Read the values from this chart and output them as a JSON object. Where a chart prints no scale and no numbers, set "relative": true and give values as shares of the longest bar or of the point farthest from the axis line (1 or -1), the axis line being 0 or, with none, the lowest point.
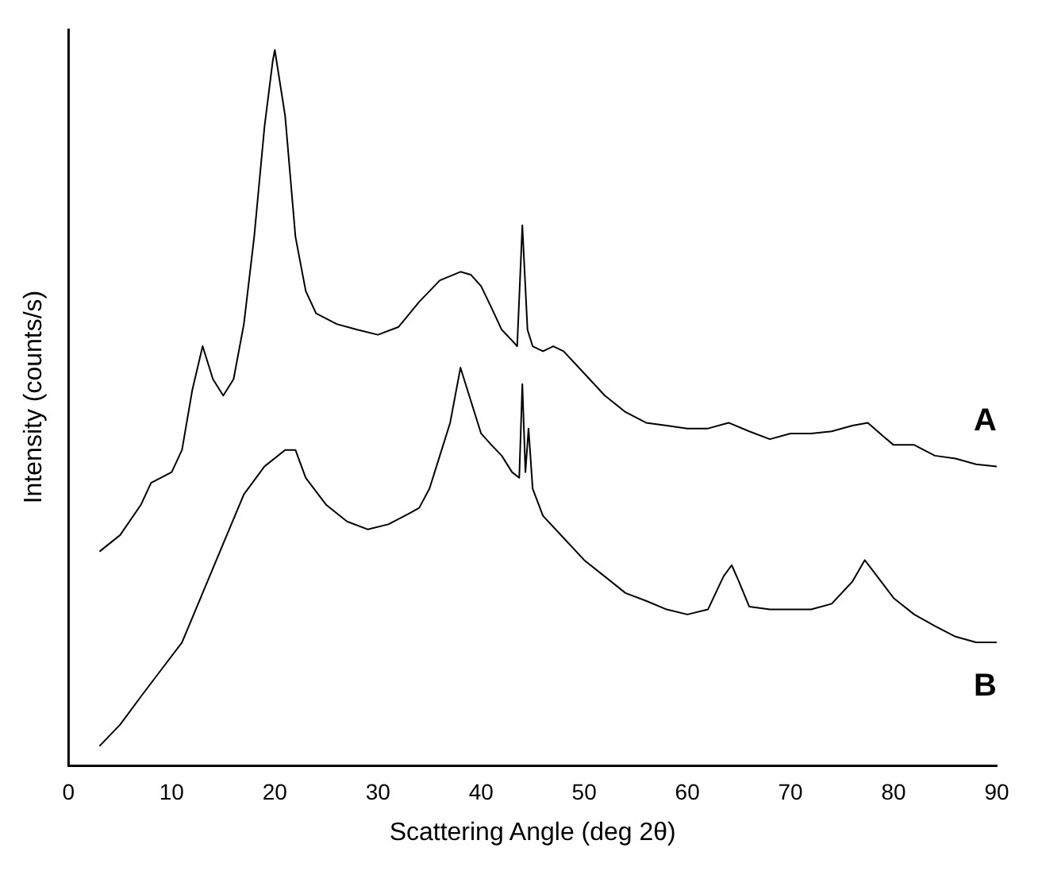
{
  "chart_data": {
    "type": "line",
    "xlabel": "Scattering Angle (deg 2θ)",
    "ylabel": "Intensity (counts/s)",
    "relative": true,
    "xlim": [
      0,
      90
    ],
    "xticks": [
      0,
      10,
      20,
      30,
      40,
      50,
      60,
      70,
      80,
      90
    ],
    "grid": false,
    "legend": false,
    "marker": "none",
    "line_style": "solid",
    "series": [
      {
        "name": "A",
        "color": "#000000",
        "x": [
          3,
          5,
          7,
          8,
          10,
          11,
          12,
          13,
          14,
          15,
          16,
          17,
          18,
          19,
          19.8,
          20,
          21,
          22,
          23,
          24,
          26,
          28,
          30,
          32,
          34,
          36,
          38,
          39,
          40,
          41,
          42,
          43,
          43.5,
          44,
          44.5,
          45,
          46,
          47,
          48,
          50,
          52,
          54,
          56,
          58,
          60,
          62,
          64,
          66,
          68,
          70,
          72,
          74,
          76,
          77.5,
          79,
          80,
          82,
          84,
          86,
          88,
          90
        ],
        "values": [
          0.299,
          0.322,
          0.364,
          0.395,
          0.41,
          0.441,
          0.525,
          0.586,
          0.54,
          0.517,
          0.54,
          0.617,
          0.739,
          0.893,
          0.985,
          1.0,
          0.908,
          0.739,
          0.663,
          0.632,
          0.617,
          0.609,
          0.602,
          0.613,
          0.648,
          0.678,
          0.69,
          0.686,
          0.67,
          0.64,
          0.609,
          0.594,
          0.586,
          0.755,
          0.609,
          0.586,
          0.579,
          0.586,
          0.579,
          0.548,
          0.517,
          0.494,
          0.479,
          0.475,
          0.471,
          0.471,
          0.479,
          0.467,
          0.456,
          0.464,
          0.464,
          0.467,
          0.475,
          0.479,
          0.46,
          0.448,
          0.448,
          0.433,
          0.429,
          0.421,
          0.418
        ]
      },
      {
        "name": "B",
        "color": "#000000",
        "x": [
          3,
          5,
          7,
          9,
          11,
          13,
          15,
          17,
          19,
          21,
          22,
          23,
          25,
          27,
          29,
          31,
          33,
          34,
          35,
          36,
          37,
          38,
          39,
          40,
          41,
          42,
          43,
          43.7,
          44,
          44.3,
          44.6,
          45,
          46,
          48,
          50,
          52,
          54,
          56,
          58,
          60,
          62,
          63.5,
          64.3,
          65,
          66,
          68,
          70,
          72,
          74,
          76,
          77.2,
          78,
          80,
          82,
          84,
          86,
          88,
          90
        ],
        "values": [
          0.027,
          0.057,
          0.096,
          0.134,
          0.172,
          0.241,
          0.31,
          0.379,
          0.418,
          0.441,
          0.441,
          0.402,
          0.364,
          0.341,
          0.33,
          0.337,
          0.352,
          0.36,
          0.387,
          0.433,
          0.479,
          0.556,
          0.51,
          0.464,
          0.448,
          0.433,
          0.41,
          0.402,
          0.533,
          0.41,
          0.471,
          0.387,
          0.349,
          0.318,
          0.287,
          0.264,
          0.241,
          0.23,
          0.218,
          0.211,
          0.218,
          0.264,
          0.28,
          0.257,
          0.222,
          0.218,
          0.218,
          0.218,
          0.226,
          0.257,
          0.287,
          0.272,
          0.234,
          0.211,
          0.195,
          0.18,
          0.172,
          0.172
        ]
      }
    ]
  }
}
